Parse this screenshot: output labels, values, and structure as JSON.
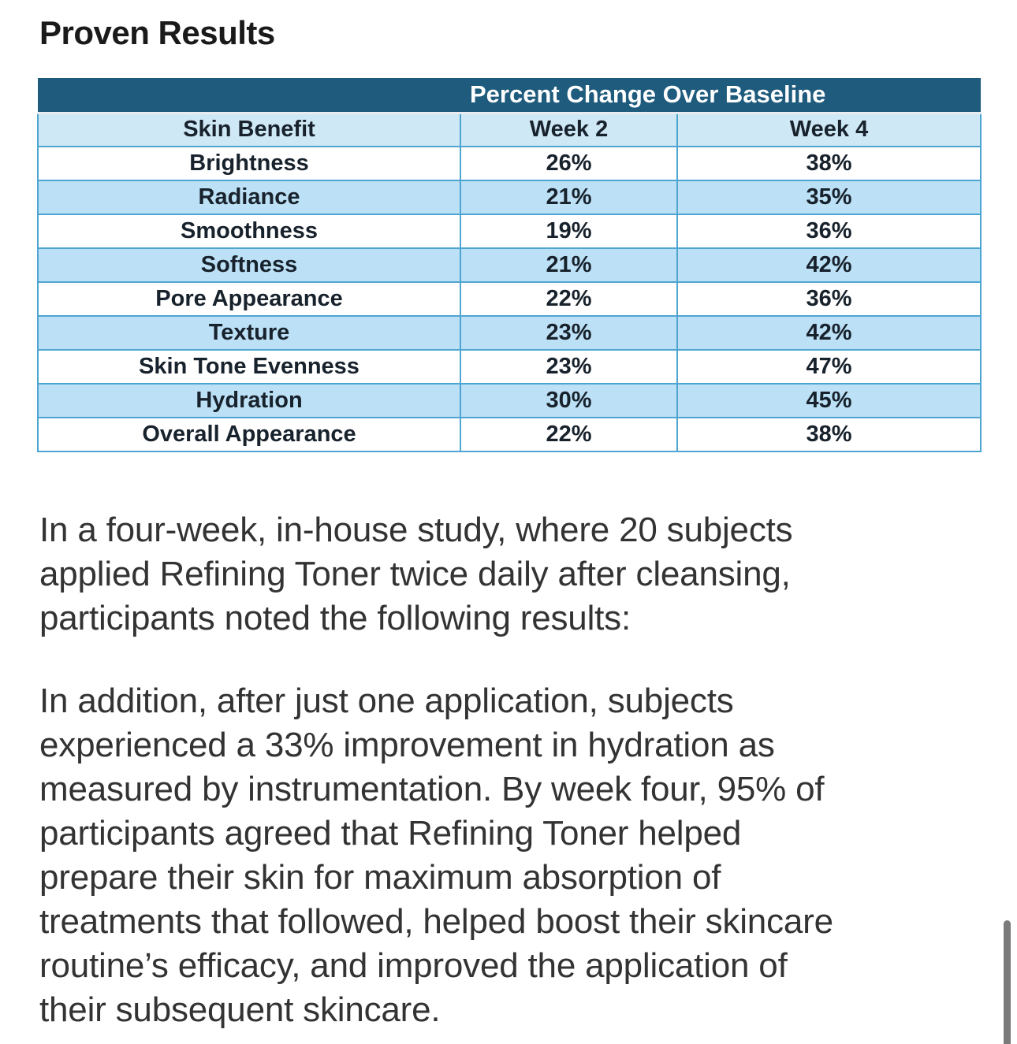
{
  "page": {
    "title": "Proven Results"
  },
  "table": {
    "banner": "Percent Change Over Baseline",
    "columns": {
      "benefit": "Skin Benefit",
      "week2": "Week 2",
      "week4": "Week 4"
    },
    "rows": [
      {
        "benefit": "Brightness",
        "week2": "26%",
        "week4": "38%"
      },
      {
        "benefit": "Radiance",
        "week2": "21%",
        "week4": "35%"
      },
      {
        "benefit": "Smoothness",
        "week2": "19%",
        "week4": "36%"
      },
      {
        "benefit": "Softness",
        "week2": "21%",
        "week4": "42%"
      },
      {
        "benefit": "Pore Appearance",
        "week2": "22%",
        "week4": "36%"
      },
      {
        "benefit": "Texture",
        "week2": "23%",
        "week4": "42%"
      },
      {
        "benefit": "Skin Tone Evenness",
        "week2": "23%",
        "week4": "47%"
      },
      {
        "benefit": "Hydration",
        "week2": "30%",
        "week4": "45%"
      },
      {
        "benefit": "Overall Appearance",
        "week2": "22%",
        "week4": "38%"
      }
    ]
  },
  "paragraphs": {
    "p1": "In a four-week, in-house study, where 20 subjects\napplied Refining Toner twice daily after cleansing,\nparticipants noted the following results:",
    "p2": "In addition, after just one application, subjects\nexperienced a 33% improvement in hydration as\nmeasured by instrumentation. By week four, 95% of\nparticipants agreed that Refining Toner helped\nprepare their skin for maximum absorption of\ntreatments that followed, helped boost their skincare\nroutine’s efficacy, and improved the application of\ntheir subsequent skincare."
  },
  "colors": {
    "banner_bg": "#1e5b7d",
    "column_header_bg": "#cfe8f5",
    "stripe_bg": "#bce0f5",
    "grid_border": "#4fa5d1",
    "heading_text": "#1a1a1a",
    "body_text": "#333333",
    "scrollbar": "#7a7a7a"
  }
}
